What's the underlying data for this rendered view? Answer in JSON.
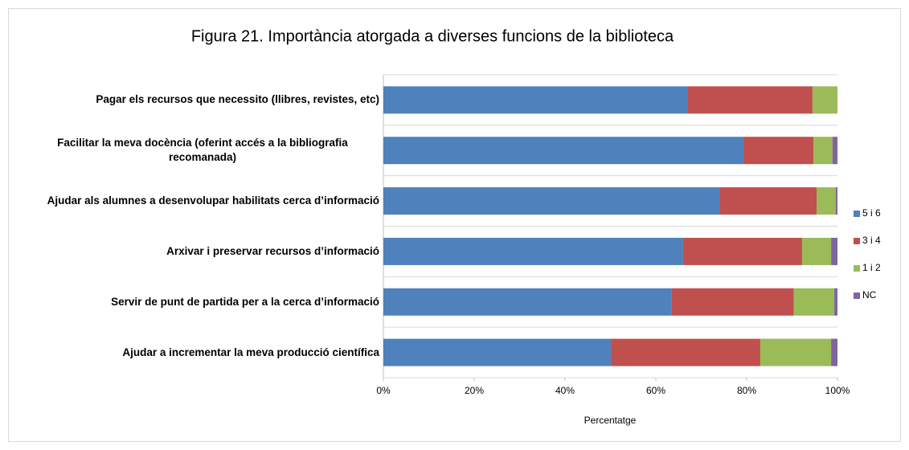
{
  "chart_data": {
    "type": "stacked_barh",
    "title": "Figura 21. Importància atorgada a diverses funcions de la biblioteca",
    "x_label": "Percentatge",
    "categories": [
      "Pagar els recursos que necessito  (llibres, revistes, etc)",
      "Facilitar la meva docència (oferint accés a la bibliografia recomanada)",
      "Ajudar als alumnes a desenvolupar habilitats cerca d’informació",
      "Arxivar i preservar recursos d’informació",
      "Servir de punt de partida per  a la cerca d’informació",
      "Ajudar a incrementar la meva producció científica"
    ],
    "series": [
      {
        "name": "5  i 6",
        "color": "#4f81bd",
        "values": [
          67,
          79.3,
          74,
          66,
          63.4,
          50.1
        ]
      },
      {
        "name": "3  i 4",
        "color": "#c0504d",
        "values": [
          27.5,
          15.4,
          21.4,
          26.2,
          27,
          32.9
        ]
      },
      {
        "name": "1 i 2",
        "color": "#9bbb59",
        "values": [
          5.5,
          4.2,
          4.2,
          6.4,
          8.9,
          15.6
        ]
      },
      {
        "name": "NC",
        "color": "#8064a2",
        "values": [
          0,
          1.1,
          0.4,
          1.4,
          0.7,
          1.4
        ]
      }
    ],
    "xlim": [
      0,
      100
    ],
    "xticks": [
      {
        "value": 0,
        "label": "0%"
      },
      {
        "value": 20,
        "label": "20%"
      },
      {
        "value": 40,
        "label": "40%"
      },
      {
        "value": 60,
        "label": "60%"
      },
      {
        "value": 80,
        "label": "80%"
      },
      {
        "value": 100,
        "label": "100%"
      }
    ],
    "legend": "right"
  }
}
